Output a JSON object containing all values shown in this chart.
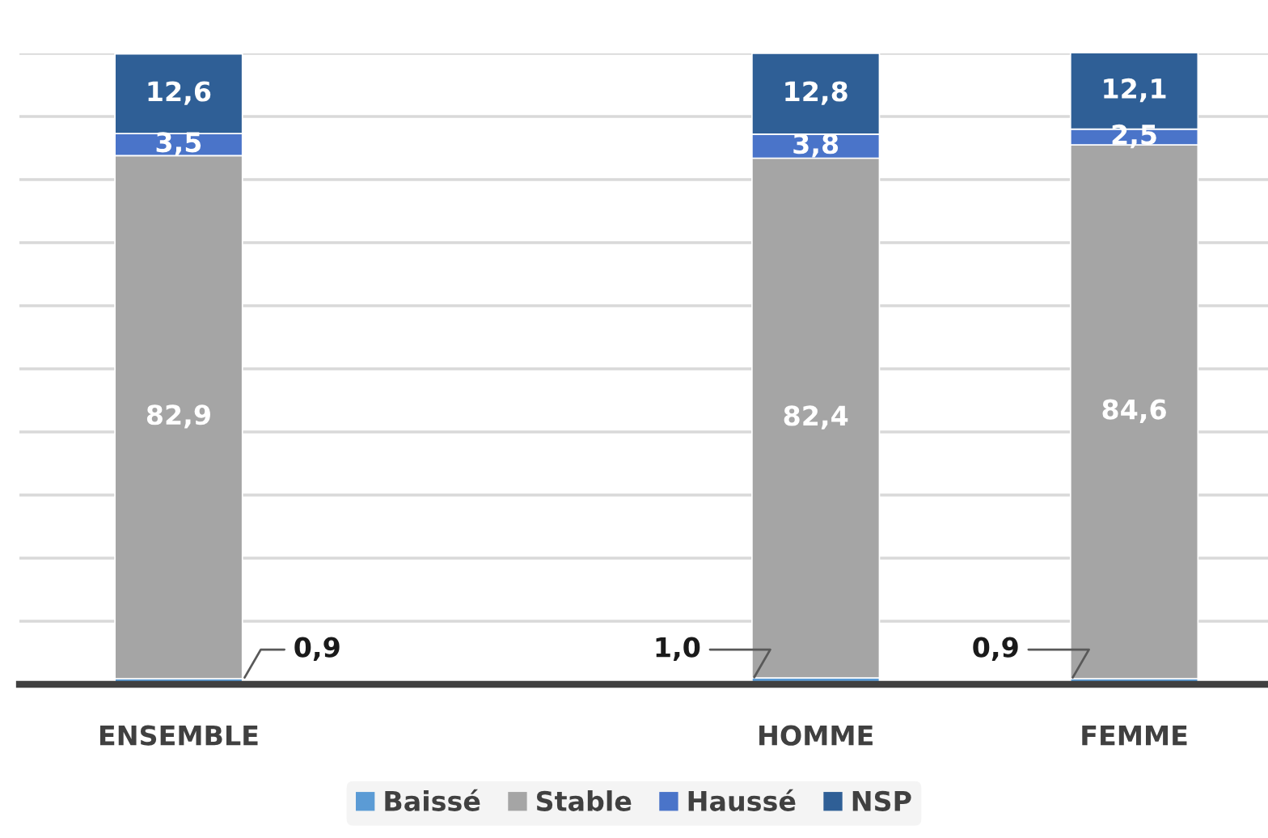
{
  "chart_data": {
    "type": "bar",
    "stacked": true,
    "categories": [
      "ENSEMBLE",
      null,
      "HOMME",
      "FEMME"
    ],
    "series": [
      {
        "name": "Baissé",
        "color": "#5b9bd5",
        "values": [
          0.9,
          null,
          1.0,
          0.9
        ],
        "value_labels": [
          "0,9",
          null,
          "1,0",
          "0,9"
        ]
      },
      {
        "name": "Stable",
        "color": "#a5a5a5",
        "values": [
          82.9,
          null,
          82.4,
          84.6
        ],
        "value_labels": [
          "82,9",
          null,
          "82,4",
          "84,6"
        ]
      },
      {
        "name": "Haussé",
        "color": "#4a74c9",
        "values": [
          3.5,
          null,
          3.8,
          2.5
        ],
        "value_labels": [
          "3,5",
          null,
          "3,8",
          "2,5"
        ]
      },
      {
        "name": "NSP",
        "color": "#2f5f96",
        "values": [
          12.6,
          null,
          12.8,
          12.1
        ],
        "value_labels": [
          "12,6",
          null,
          "12,8",
          "12,1"
        ]
      }
    ],
    "ylim": [
      0,
      100
    ],
    "yticks": [
      0,
      10,
      20,
      30,
      40,
      50,
      60,
      70,
      80,
      90,
      100
    ],
    "grid": "y",
    "tick_labels": "x",
    "legend": "bottom"
  }
}
